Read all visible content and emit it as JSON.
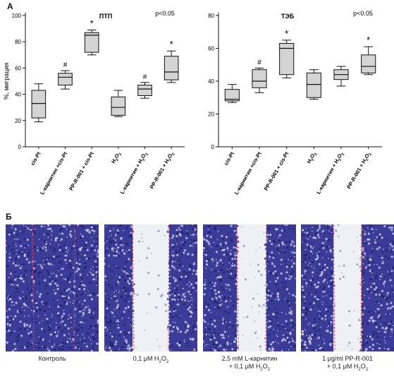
{
  "panel_a_label": "A",
  "panel_b_label": "Б",
  "chart_data": [
    {
      "type": "box",
      "title": "ПТП",
      "annotation": "p<0.05",
      "ylabel": "%, миграция",
      "ylim": [
        0,
        100
      ],
      "yticks": [
        0,
        20,
        40,
        60,
        80,
        100
      ],
      "categories": [
        {
          "parts": [
            "cis-Pt"
          ]
        },
        {
          "parts": [
            "L-карнитин +cis-Pt"
          ]
        },
        {
          "parts": [
            "PP-R-001 + cis-Pt"
          ]
        },
        {
          "parts": [
            "H",
            "2",
            "O",
            "2",
            ""
          ]
        },
        {
          "parts": [
            "L-карнитин + H",
            "2",
            "O",
            "2",
            ""
          ]
        },
        {
          "parts": [
            "PP-R-001 + H",
            "2",
            "O",
            "2",
            ""
          ]
        }
      ],
      "boxes": [
        {
          "min": 19,
          "q1": 22,
          "median": 33,
          "q3": 43,
          "max": 48,
          "mark": ""
        },
        {
          "min": 44,
          "q1": 47,
          "median": 53,
          "q3": 56,
          "max": 58,
          "mark": "#"
        },
        {
          "min": 70,
          "q1": 72,
          "median": 85,
          "q3": 87,
          "max": 89,
          "mark": "*"
        },
        {
          "min": 23,
          "q1": 24,
          "median": 30,
          "q3": 38,
          "max": 43,
          "mark": ""
        },
        {
          "min": 37,
          "q1": 39,
          "median": 44,
          "q3": 47,
          "max": 49,
          "mark": "#"
        },
        {
          "min": 49,
          "q1": 51,
          "median": 57,
          "q3": 69,
          "max": 73,
          "mark": "*"
        }
      ]
    },
    {
      "type": "box",
      "title": "ТЭБ",
      "annotation": "p<0.05",
      "ylabel": "",
      "ylim": [
        0,
        80
      ],
      "yticks": [
        0,
        20,
        40,
        60,
        80
      ],
      "categories": [
        {
          "parts": [
            "cis-Pt"
          ]
        },
        {
          "parts": [
            "L-карнитин +cis-Pt"
          ]
        },
        {
          "parts": [
            "PP-R-001 + cis-Pt"
          ]
        },
        {
          "parts": [
            "H",
            "2",
            "O",
            "2",
            ""
          ]
        },
        {
          "parts": [
            "L-карнитин + H",
            "2",
            "O",
            "2",
            ""
          ]
        },
        {
          "parts": [
            "PP-R-001 + H",
            "2",
            "O",
            "2",
            ""
          ]
        }
      ],
      "boxes": [
        {
          "min": 27,
          "q1": 28,
          "median": 29,
          "q3": 35,
          "max": 38,
          "mark": ""
        },
        {
          "min": 33,
          "q1": 36,
          "median": 40,
          "q3": 47,
          "max": 48,
          "mark": "#"
        },
        {
          "min": 42,
          "q1": 44,
          "median": 60,
          "q3": 63,
          "max": 65,
          "mark": "*"
        },
        {
          "min": 29,
          "q1": 30,
          "median": 38,
          "q3": 45,
          "max": 47,
          "mark": ""
        },
        {
          "min": 37,
          "q1": 41,
          "median": 44,
          "q3": 47,
          "max": 49,
          "mark": ""
        },
        {
          "min": 44,
          "q1": 45,
          "median": 49,
          "q3": 56,
          "max": 61,
          "mark": "*"
        }
      ]
    }
  ],
  "micrographs": [
    {
      "caption_lines": [
        [
          "Контроль"
        ]
      ]
    },
    {
      "caption_lines": [
        [
          "0,1 μM H",
          "2",
          "O",
          "2",
          ""
        ]
      ]
    },
    {
      "caption_lines": [
        [
          "2,5 mM  L-карнитин"
        ],
        [
          "+ 0,1 μM H",
          "2",
          "O",
          "2",
          ""
        ]
      ]
    },
    {
      "caption_lines": [
        [
          "1 μg/ml PP-R-001"
        ],
        [
          "+ 0,1 μM H",
          "2",
          "O",
          "2",
          ""
        ]
      ]
    }
  ],
  "colors": {
    "box_fill": "#d4d4d4",
    "stain": "#3b3c98",
    "wound_edge": "#e0405a"
  }
}
